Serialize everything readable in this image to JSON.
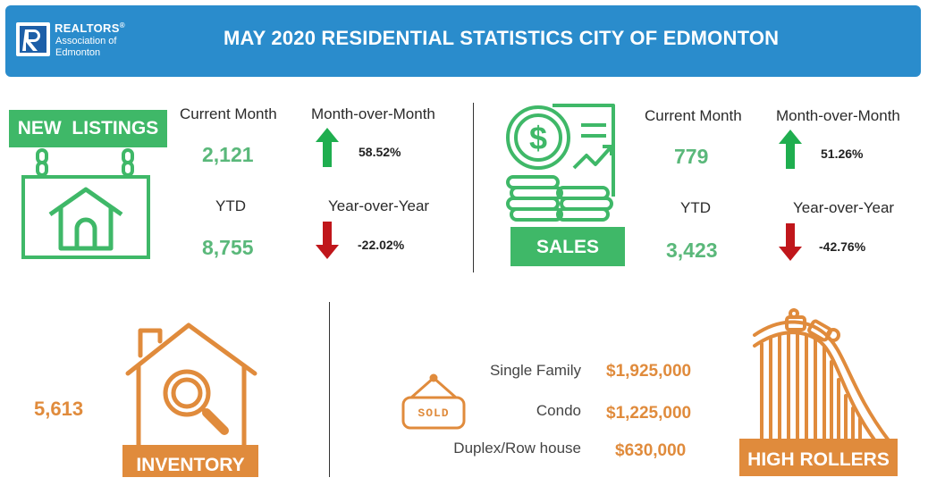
{
  "header": {
    "logo_line1": "REALTORS",
    "logo_reg": "®",
    "logo_line2": "Association of",
    "logo_line3": "Edmonton",
    "title": "MAY 2020 RESIDENTIAL STATISTICS CITY OF EDMONTON"
  },
  "new_listings": {
    "banner": "NEW  LISTINGS",
    "current_month_label": "Current Month",
    "current_month_value": "2,121",
    "mom_label": "Month-over-Month",
    "mom_value": "58.52%",
    "mom_direction": "up",
    "ytd_label": "YTD",
    "ytd_value": "8,755",
    "yoy_label": "Year-over-Year",
    "yoy_value": "-22.02%",
    "yoy_direction": "down"
  },
  "sales": {
    "banner": "SALES",
    "current_month_label": "Current Month",
    "current_month_value": "779",
    "mom_label": "Month-over-Month",
    "mom_value": "51.26%",
    "mom_direction": "up",
    "ytd_label": "YTD",
    "ytd_value": "3,423",
    "yoy_label": "Year-over-Year",
    "yoy_value": "-42.76%",
    "yoy_direction": "down"
  },
  "inventory": {
    "banner": "INVENTORY",
    "value": "5,613"
  },
  "high_rollers": {
    "banner": "HIGH ROLLERS",
    "sold_sign": "SOLD",
    "rows": [
      {
        "label": "Single Family",
        "value": "$1,925,000"
      },
      {
        "label": "Condo",
        "value": "$1,225,000"
      },
      {
        "label": "Duplex/Row house",
        "value": "$630,000"
      }
    ]
  },
  "colors": {
    "header_blue": "#2a8ccc",
    "green": "#3fb868",
    "green_text": "#5ab87a",
    "orange": "#e08b3c",
    "arrow_up": "#1fae4f",
    "arrow_down": "#c0161b"
  }
}
